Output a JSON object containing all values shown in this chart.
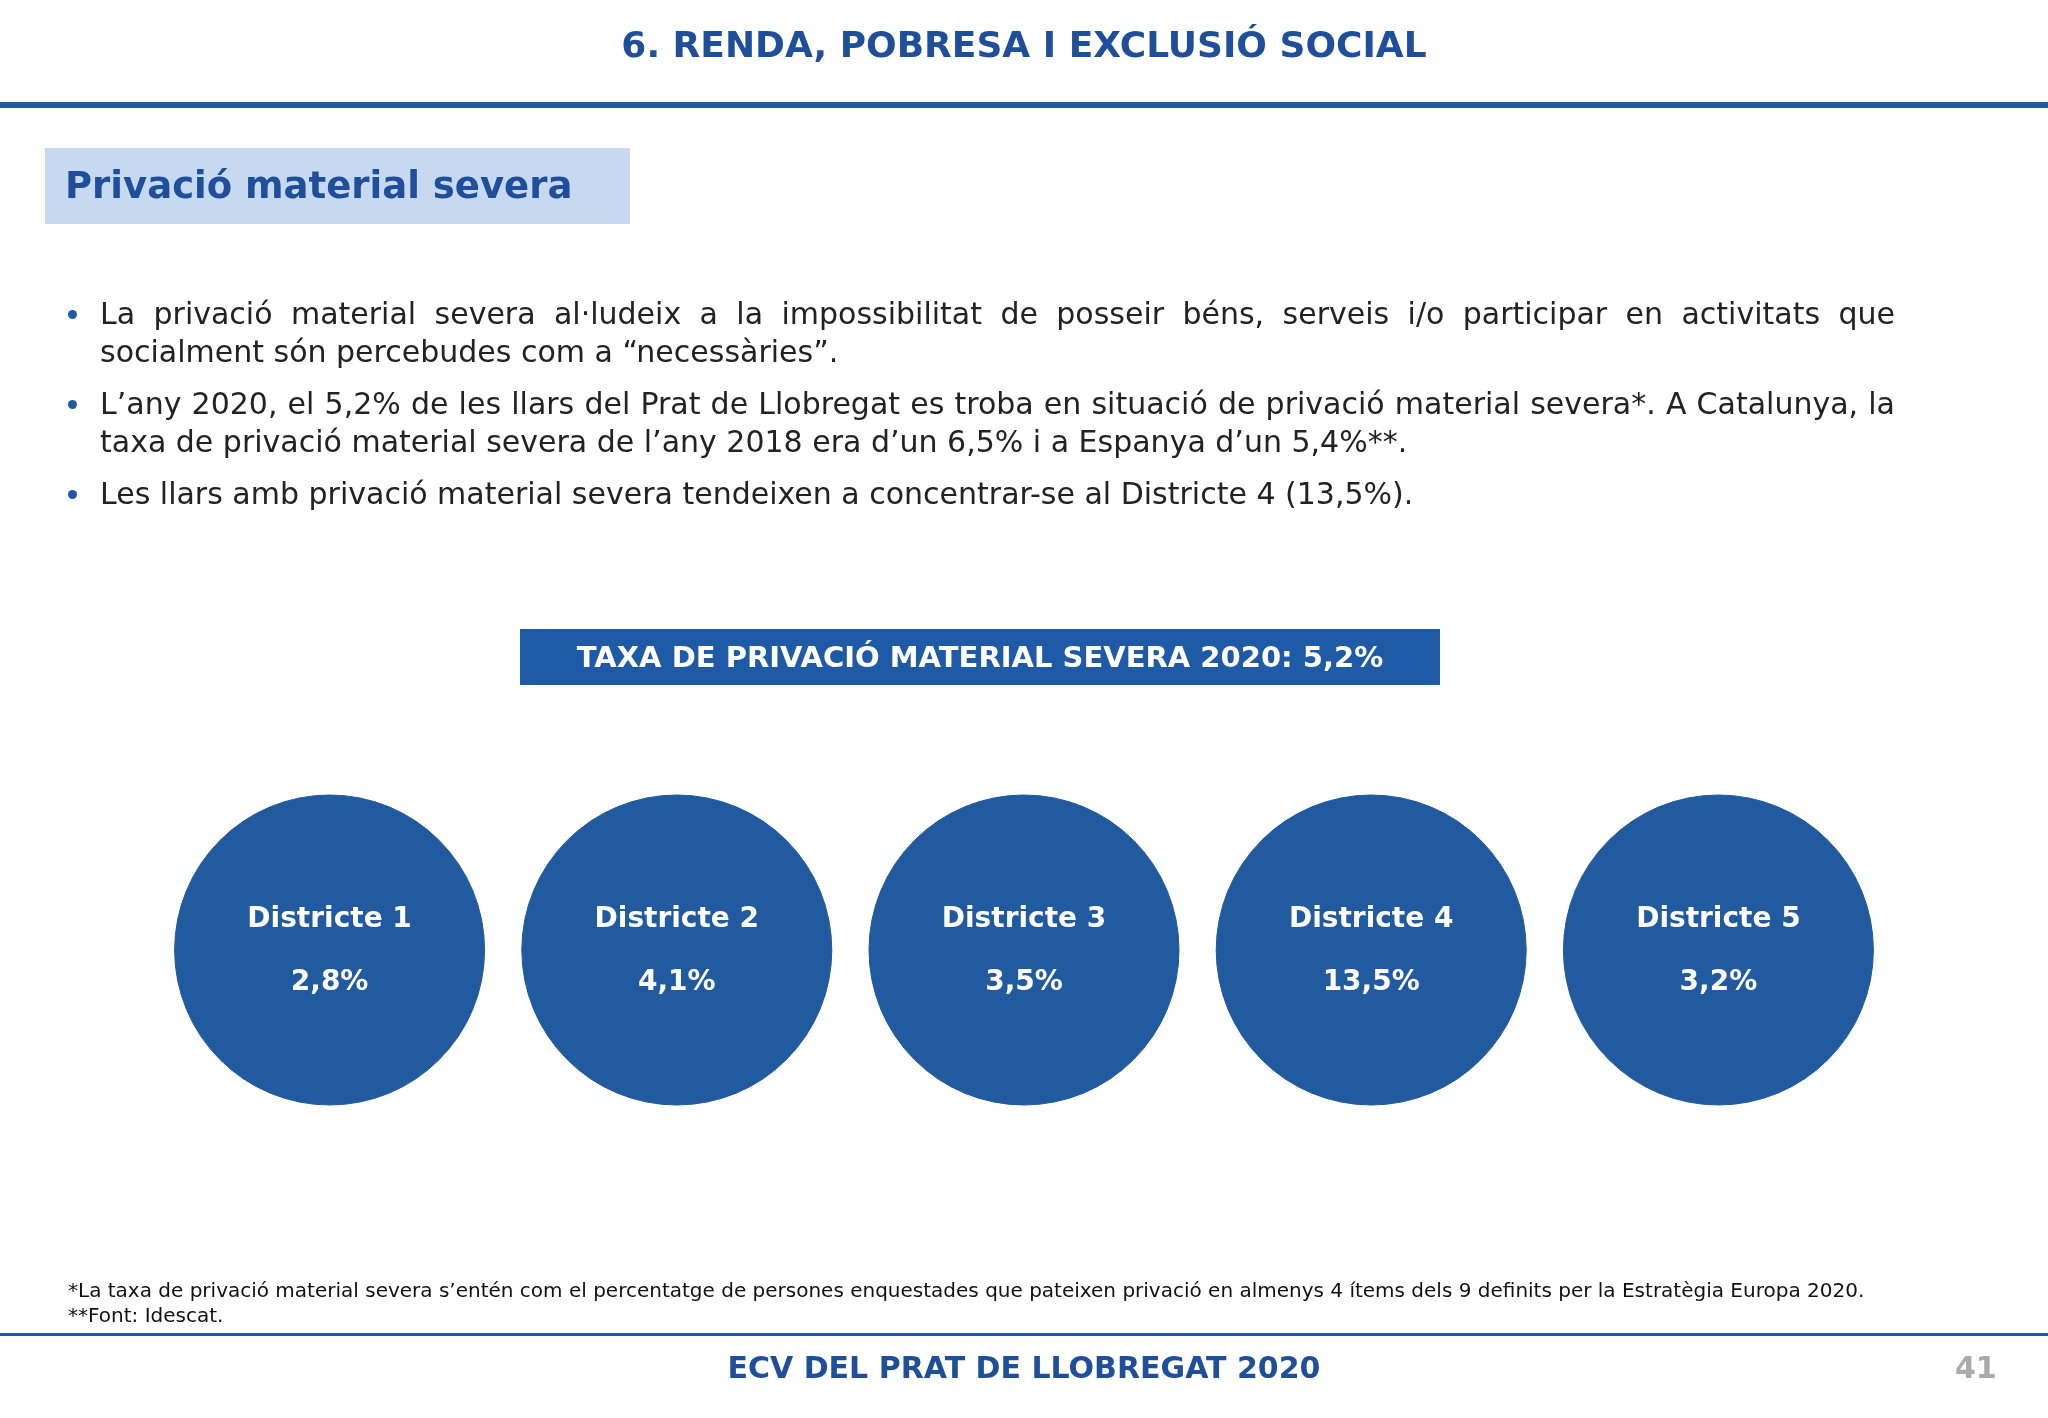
{
  "chart_data": {
    "type": "other",
    "title": "6. RENDA, POBRESA I EXCLUSIÓ SOCIAL",
    "subtitle": "Privació material severa",
    "annotations": [
      "La privació material severa al·ludeix a la impossibilitat de posseir béns, serveis i/o participar en activitats que socialment són percebudes com a “necessàries”.",
      "L’any 2020, el 5,2% de les llars del Prat de Llobregat es troba en situació de privació material severa*. A Catalunya, la taxa de privació material severa de l’any 2018 era d’un 6,5% i a Espanya d’un 5,4%**.",
      "Les llars amb privació material severa tendeixen a concentrar-se al Districte 4 (13,5%).",
      "TAXA DE PRIVACIÓ MATERIAL SEVERA 2020: 5,2%",
      "*La taxa de privació material severa s’entén com el percentatge de persones enquestades que pateixen privació en almenys 4 ítems dels 9 definits per la Estratègia Europa 2020.",
      "**Font: Idescat.",
      "ECV DEL PRAT DE LLOBREGAT 2020",
      "41"
    ],
    "categories": [
      "Districte 1",
      "Districte 2",
      "Districte 3",
      "Districte 4",
      "Districte 5"
    ],
    "values": [
      2.8,
      4.1,
      3.5,
      13.5,
      3.2
    ],
    "value_labels": [
      "2,8%",
      "4,1%",
      "3,5%",
      "13,5%",
      "3,2%"
    ],
    "color": "#215a9e"
  }
}
